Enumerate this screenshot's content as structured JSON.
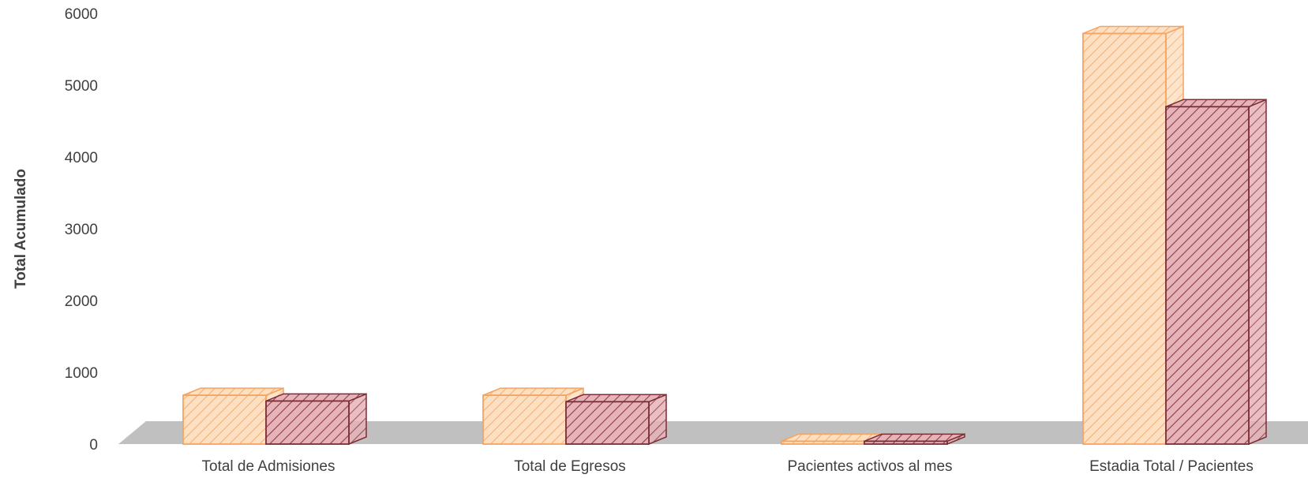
{
  "chart_data": {
    "type": "bar",
    "categories": [
      "Total de Admisiones",
      "Total de Egresos",
      "Pacientes activos al mes",
      "Estadia Total / Pacientes"
    ],
    "series": [
      {
        "values": [
          680,
          680,
          40,
          5720
        ]
      },
      {
        "values": [
          600,
          590,
          40,
          4700
        ]
      }
    ],
    "ylabel": "Total Acumulado",
    "yticks": [
      "0",
      "1000",
      "2000",
      "3000",
      "4000",
      "5000",
      "6000"
    ],
    "ylim": [
      0,
      6000
    ],
    "grid": false,
    "legend": "none",
    "colors": {
      "series1_face": "#fde0c2",
      "series1_stroke": "#f4a460",
      "series1_hatch": "#f3b07a",
      "series2_face": "#e6b3b8",
      "series2_stroke": "#7a2e36",
      "series2_hatch": "#8e3d47",
      "floor": "#c0c0c0",
      "text": "#404040"
    }
  }
}
